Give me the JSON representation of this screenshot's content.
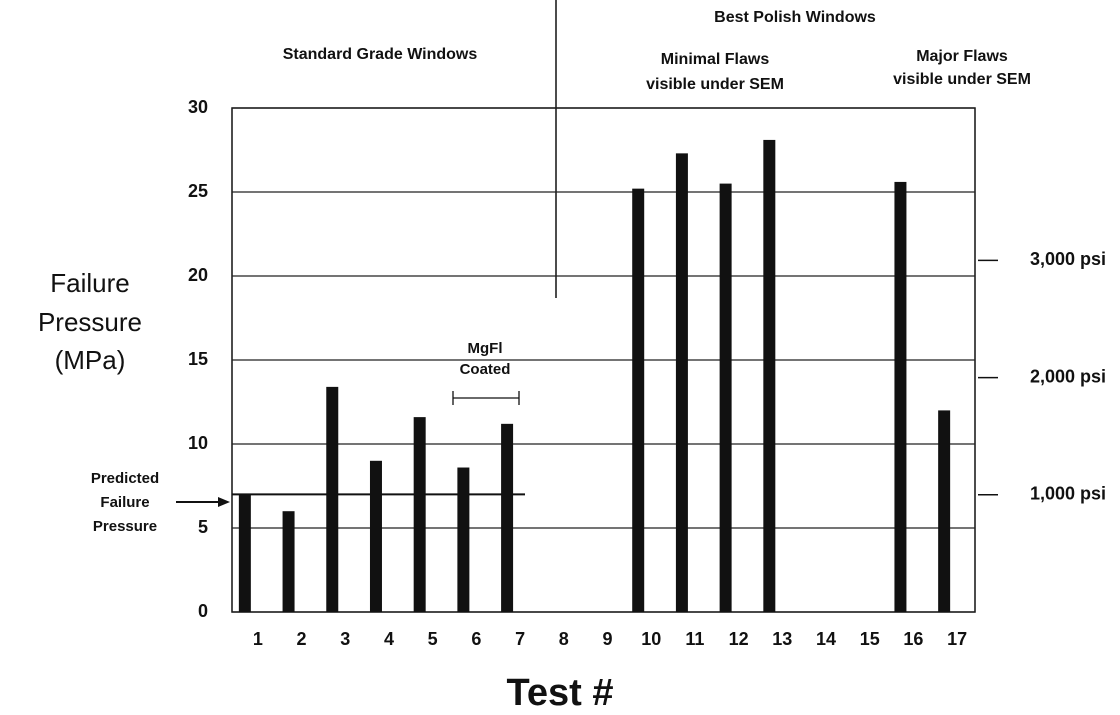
{
  "chart_data": {
    "type": "bar",
    "y_label": [
      "Failure",
      "Pressure",
      "(MPa)"
    ],
    "x_label": "Test #",
    "categories": [
      "1",
      "2",
      "3",
      "4",
      "5",
      "6",
      "7",
      "8",
      "9",
      "10",
      "11",
      "12",
      "13",
      "14",
      "15",
      "16",
      "17"
    ],
    "values": [
      7.0,
      6.0,
      13.4,
      9.0,
      11.6,
      8.6,
      11.2,
      null,
      null,
      25.2,
      27.3,
      25.5,
      28.1,
      null,
      null,
      25.6,
      12.0
    ],
    "color": "#111111",
    "ylim": [
      0,
      30
    ],
    "yticks": [
      0,
      5,
      10,
      15,
      20,
      25,
      30
    ],
    "y2lim": [
      0,
      4300
    ],
    "y2ticks": [
      {
        "value": 1000,
        "label": "1,000 psi"
      },
      {
        "value": 2000,
        "label": "2,000 psi"
      },
      {
        "value": 3000,
        "label": "3,000 psi"
      }
    ],
    "grid": true,
    "reference_line": {
      "value": 7.0,
      "label": [
        "Predicted",
        "Failure",
        "Pressure"
      ]
    },
    "annotations": {
      "standard": "Standard Grade Windows",
      "best": "Best Polish Windows",
      "minimal": [
        "Minimal Flaws",
        "visible under SEM"
      ],
      "major": [
        "Major Flaws",
        "visible under SEM"
      ],
      "coated": [
        "MgFl",
        "Coated"
      ]
    }
  }
}
